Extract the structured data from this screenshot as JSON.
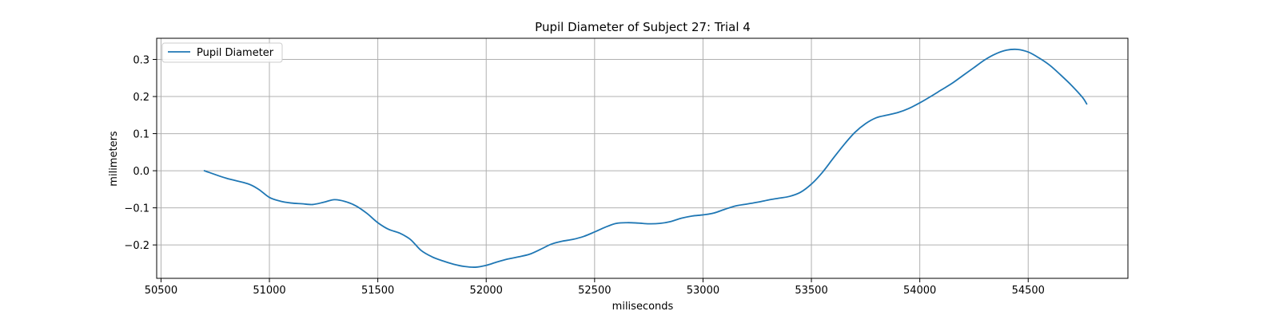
{
  "chart_data": {
    "type": "line",
    "title": "Pupil Diameter of Subject 27: Trial 4",
    "xlabel": "miliseconds",
    "ylabel": "milimeters",
    "xlim": [
      50480,
      54960
    ],
    "ylim": [
      -0.29,
      0.357
    ],
    "xticks": [
      50500,
      51000,
      51500,
      52000,
      52500,
      53000,
      53500,
      54000,
      54500
    ],
    "xtick_labels": [
      "50500",
      "51000",
      "51500",
      "52000",
      "52500",
      "53000",
      "53500",
      "54000",
      "54500"
    ],
    "yticks": [
      -0.2,
      -0.1,
      0.0,
      0.1,
      0.2,
      0.3
    ],
    "ytick_labels": [
      "−0.2",
      "−0.1",
      "0.0",
      "0.1",
      "0.2",
      "0.3"
    ],
    "grid": true,
    "legend_position": "top-left",
    "series": [
      {
        "name": "Pupil Diameter",
        "color": "#1f77b4",
        "x": [
          50700,
          50800,
          50900,
          50950,
          51000,
          51050,
          51100,
          51150,
          51200,
          51250,
          51300,
          51350,
          51400,
          51450,
          51500,
          51550,
          51600,
          51650,
          51700,
          51750,
          51800,
          51850,
          51900,
          51950,
          52000,
          52050,
          52100,
          52150,
          52200,
          52250,
          52300,
          52350,
          52400,
          52450,
          52500,
          52550,
          52600,
          52650,
          52700,
          52750,
          52800,
          52850,
          52900,
          52950,
          53000,
          53050,
          53100,
          53150,
          53200,
          53250,
          53300,
          53350,
          53400,
          53450,
          53500,
          53550,
          53600,
          53650,
          53700,
          53750,
          53800,
          53850,
          53900,
          53950,
          54000,
          54050,
          54100,
          54150,
          54200,
          54250,
          54300,
          54350,
          54400,
          54450,
          54500,
          54550,
          54600,
          54650,
          54700,
          54750,
          54770
        ],
        "values": [
          0.0,
          -0.02,
          -0.035,
          -0.05,
          -0.072,
          -0.082,
          -0.087,
          -0.089,
          -0.091,
          -0.085,
          -0.078,
          -0.083,
          -0.095,
          -0.115,
          -0.14,
          -0.158,
          -0.168,
          -0.185,
          -0.215,
          -0.232,
          -0.243,
          -0.252,
          -0.258,
          -0.26,
          -0.255,
          -0.246,
          -0.238,
          -0.232,
          -0.225,
          -0.212,
          -0.198,
          -0.19,
          -0.185,
          -0.177,
          -0.165,
          -0.152,
          -0.142,
          -0.14,
          -0.141,
          -0.143,
          -0.142,
          -0.137,
          -0.128,
          -0.122,
          -0.119,
          -0.114,
          -0.104,
          -0.095,
          -0.09,
          -0.085,
          -0.079,
          -0.074,
          -0.069,
          -0.058,
          -0.036,
          -0.005,
          0.033,
          0.07,
          0.103,
          0.127,
          0.143,
          0.15,
          0.157,
          0.168,
          0.183,
          0.2,
          0.218,
          0.236,
          0.257,
          0.278,
          0.299,
          0.315,
          0.325,
          0.327,
          0.32,
          0.304,
          0.284,
          0.258,
          0.23,
          0.198,
          0.18
        ]
      }
    ]
  }
}
